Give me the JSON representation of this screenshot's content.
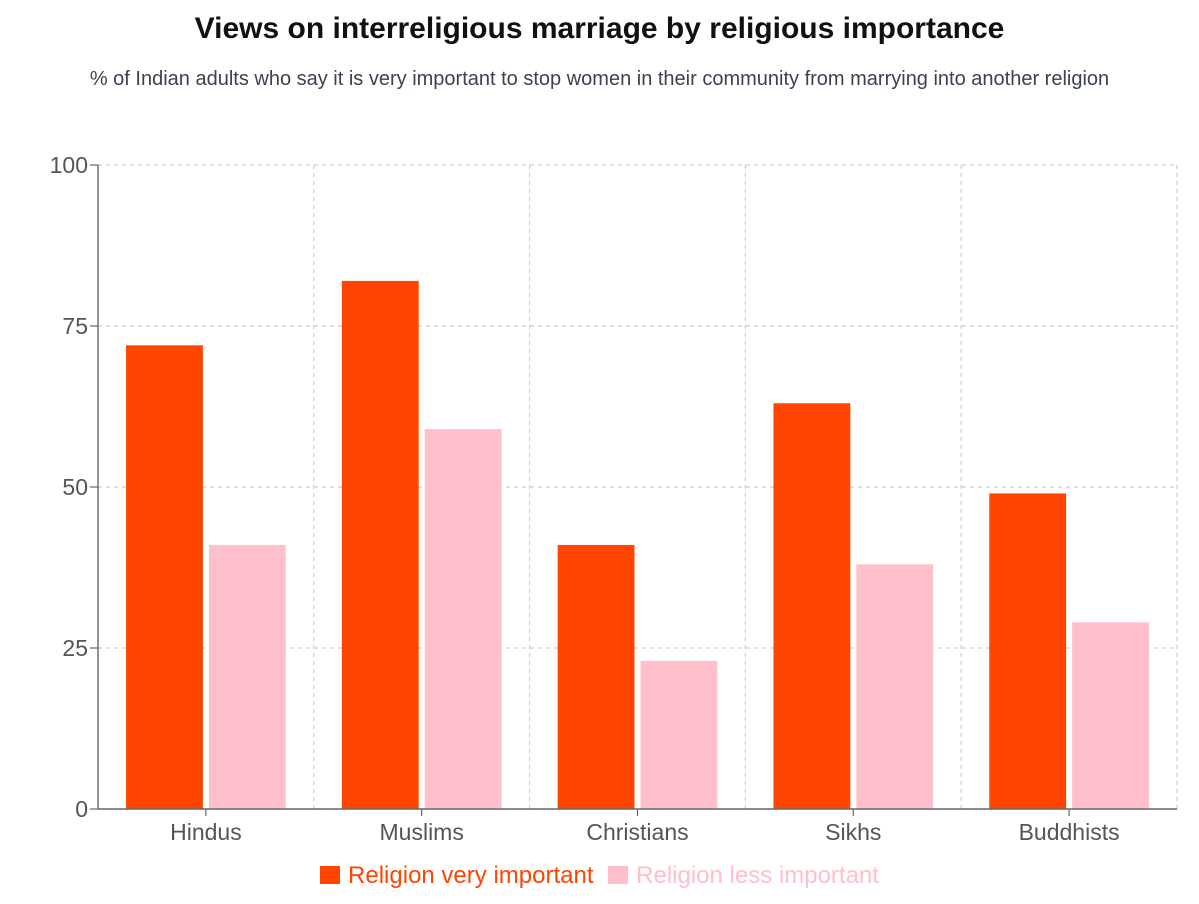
{
  "chart_data": {
    "type": "bar",
    "title": "Views on interreligious marriage by religious importance",
    "subtitle": "% of Indian adults who say it is very important to stop women in their community from marrying into another religion",
    "categories": [
      "Hindus",
      "Muslims",
      "Christians",
      "Sikhs",
      "Buddhists"
    ],
    "series": [
      {
        "name": "Religion very important",
        "color": "#ff4500",
        "values": [
          72,
          82,
          41,
          63,
          49
        ]
      },
      {
        "name": "Religion less important",
        "color": "#ffc0cb",
        "values": [
          41,
          59,
          23,
          38,
          29
        ]
      }
    ],
    "ylim": [
      0,
      100
    ],
    "yticks": [
      "0",
      "25",
      "50",
      "75",
      "100"
    ],
    "grid": true,
    "legend": "bottom-center",
    "xlabel": "",
    "ylabel": ""
  }
}
